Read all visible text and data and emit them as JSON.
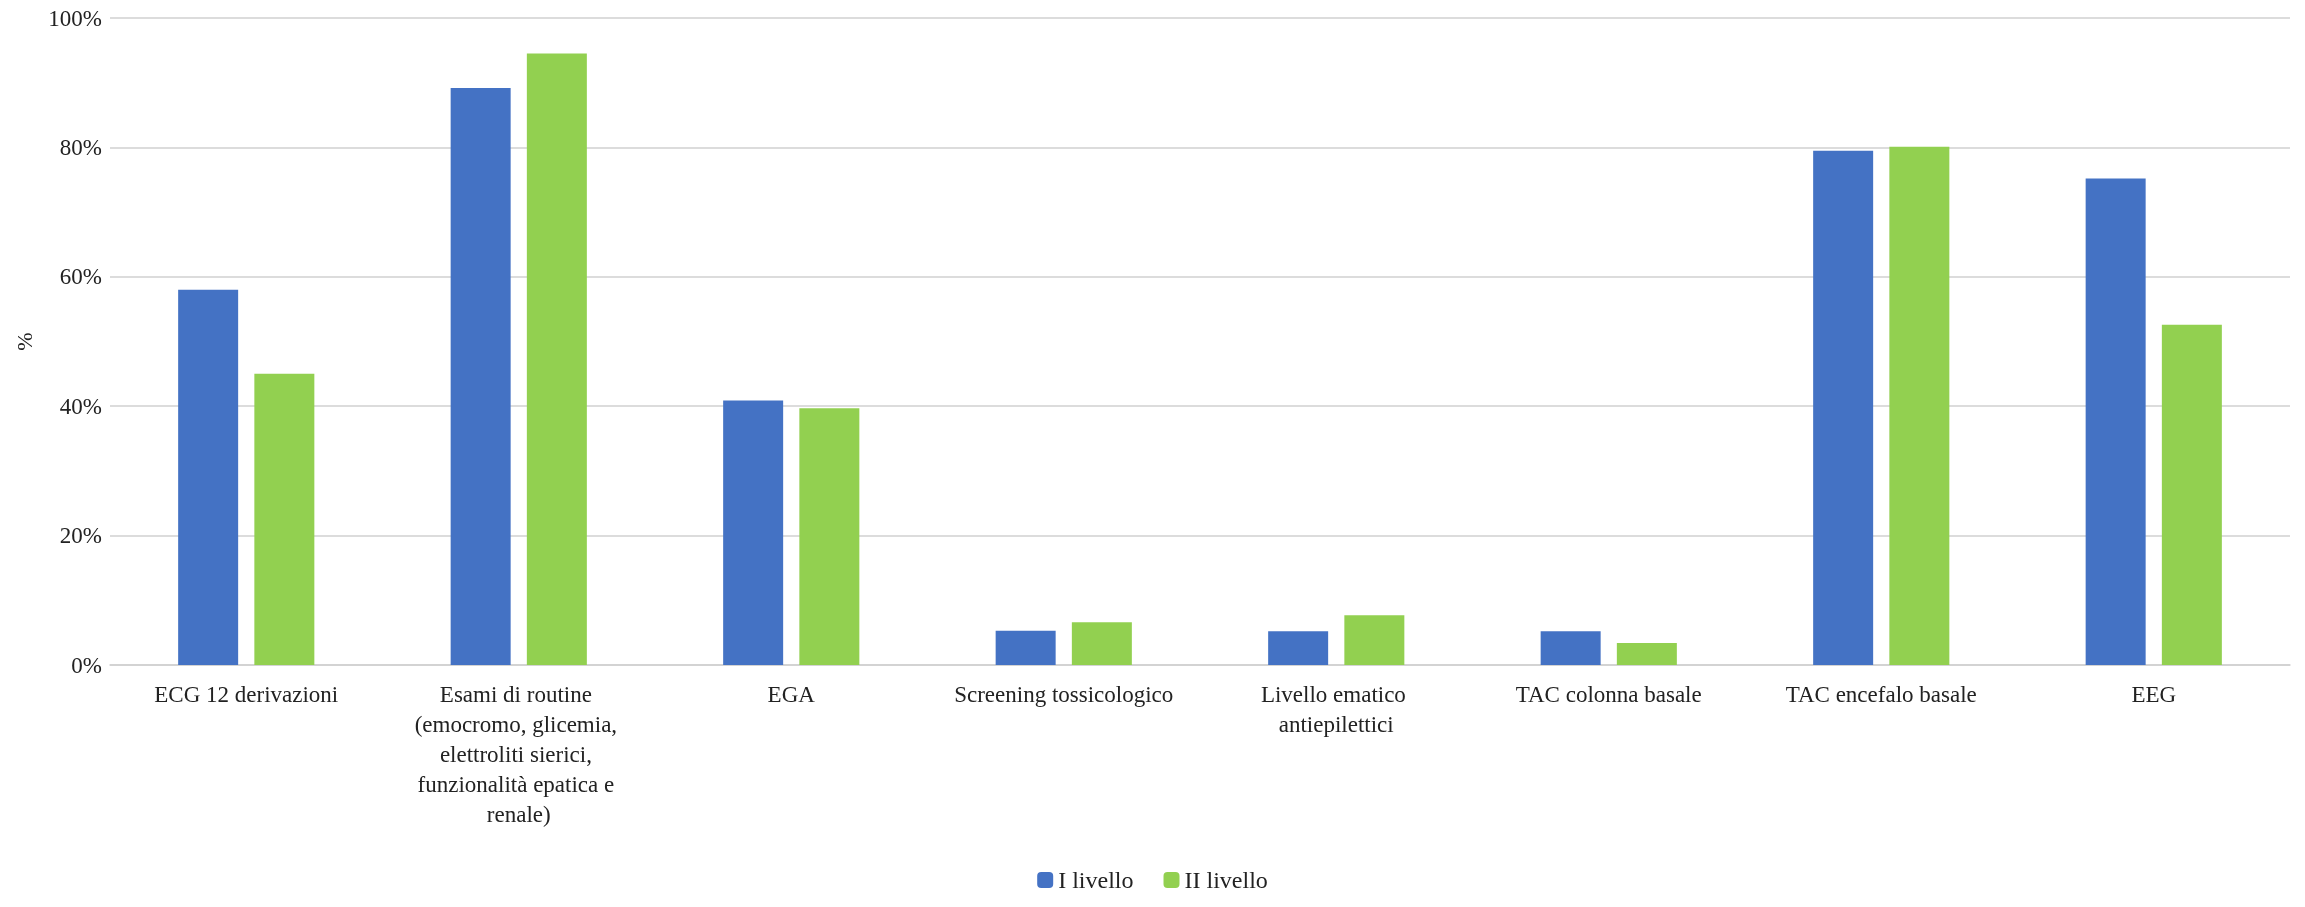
{
  "chart_data": {
    "type": "bar",
    "ylabel": "%",
    "categories": [
      "ECG 12 derivazioni",
      "Esami di routine (emocromo, glicemia, elettroliti sierici, funzionalità epatica e renale)",
      "EGA",
      "Screening tossicologico",
      "Livello ematico antiepilettici",
      "TAC colonna basale",
      "TAC encefalo basale",
      "EEG"
    ],
    "series": [
      {
        "name": "I livello",
        "color": "#4472c4",
        "values": [
          58.0,
          89.2,
          40.9,
          5.3,
          5.2,
          5.2,
          79.5,
          75.2
        ]
      },
      {
        "name": "II livello",
        "color": "#92d050",
        "values": [
          45.0,
          94.5,
          39.7,
          6.6,
          7.7,
          3.4,
          80.1,
          52.6
        ]
      }
    ],
    "ylim": [
      0,
      100
    ],
    "yticks": [
      {
        "value": 0,
        "label": "0%"
      },
      {
        "value": 20,
        "label": "20%"
      },
      {
        "value": 40,
        "label": "40%"
      },
      {
        "value": 60,
        "label": "60%"
      },
      {
        "value": 80,
        "label": "80%"
      },
      {
        "value": 100,
        "label": "100%"
      }
    ],
    "grid": "y",
    "legend": "bottom"
  }
}
